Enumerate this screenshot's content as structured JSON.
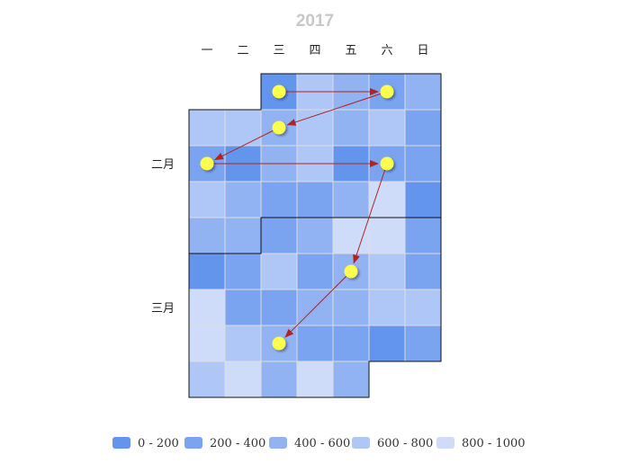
{
  "chart_data": {
    "type": "heatmap",
    "title": "2017",
    "day_labels": [
      "一",
      "二",
      "三",
      "四",
      "五",
      "六",
      "日"
    ],
    "month_labels": [
      "二月",
      "三月"
    ],
    "color_scale": [
      "#6495ed",
      "#7aa4f0",
      "#91b3f2",
      "#aec7f6",
      "#cfdcf9"
    ],
    "legend": [
      {
        "label": "0 - 200",
        "range": [
          0,
          200
        ]
      },
      {
        "label": "200 - 400",
        "range": [
          200,
          400
        ]
      },
      {
        "label": "400 - 600",
        "range": [
          400,
          600
        ]
      },
      {
        "label": "600 - 800",
        "range": [
          600,
          800
        ]
      },
      {
        "label": "800 - 1000",
        "range": [
          800,
          1000
        ]
      }
    ],
    "cells": [
      {
        "date": "2017-02-01",
        "value": 150
      },
      {
        "date": "2017-02-02",
        "value": 650
      },
      {
        "date": "2017-02-03",
        "value": 450
      },
      {
        "date": "2017-02-04",
        "value": 250
      },
      {
        "date": "2017-02-05",
        "value": 550
      },
      {
        "date": "2017-02-06",
        "value": 650
      },
      {
        "date": "2017-02-07",
        "value": 650
      },
      {
        "date": "2017-02-08",
        "value": 550
      },
      {
        "date": "2017-02-09",
        "value": 650
      },
      {
        "date": "2017-02-10",
        "value": 450
      },
      {
        "date": "2017-02-11",
        "value": 650
      },
      {
        "date": "2017-02-12",
        "value": 350
      },
      {
        "date": "2017-02-13",
        "value": 350
      },
      {
        "date": "2017-02-14",
        "value": 150
      },
      {
        "date": "2017-02-15",
        "value": 550
      },
      {
        "date": "2017-02-16",
        "value": 650
      },
      {
        "date": "2017-02-17",
        "value": 150
      },
      {
        "date": "2017-02-18",
        "value": 250
      },
      {
        "date": "2017-02-19",
        "value": 350
      },
      {
        "date": "2017-02-20",
        "value": 650
      },
      {
        "date": "2017-02-21",
        "value": 550
      },
      {
        "date": "2017-02-22",
        "value": 350
      },
      {
        "date": "2017-02-23",
        "value": 350
      },
      {
        "date": "2017-02-24",
        "value": 550
      },
      {
        "date": "2017-02-25",
        "value": 850
      },
      {
        "date": "2017-02-26",
        "value": 150
      },
      {
        "date": "2017-02-27",
        "value": 550
      },
      {
        "date": "2017-02-28",
        "value": 550
      },
      {
        "date": "2017-03-01",
        "value": 350
      },
      {
        "date": "2017-03-02",
        "value": 450
      },
      {
        "date": "2017-03-03",
        "value": 850
      },
      {
        "date": "2017-03-04",
        "value": 850
      },
      {
        "date": "2017-03-05",
        "value": 350
      },
      {
        "date": "2017-03-06",
        "value": 150
      },
      {
        "date": "2017-03-07",
        "value": 350
      },
      {
        "date": "2017-03-08",
        "value": 650
      },
      {
        "date": "2017-03-09",
        "value": 350
      },
      {
        "date": "2017-03-10",
        "value": 450
      },
      {
        "date": "2017-03-11",
        "value": 650
      },
      {
        "date": "2017-03-12",
        "value": 350
      },
      {
        "date": "2017-03-13",
        "value": 850
      },
      {
        "date": "2017-03-14",
        "value": 350
      },
      {
        "date": "2017-03-15",
        "value": 350
      },
      {
        "date": "2017-03-16",
        "value": 550
      },
      {
        "date": "2017-03-17",
        "value": 450
      },
      {
        "date": "2017-03-18",
        "value": 650
      },
      {
        "date": "2017-03-19",
        "value": 650
      },
      {
        "date": "2017-03-20",
        "value": 850
      },
      {
        "date": "2017-03-21",
        "value": 650
      },
      {
        "date": "2017-03-22",
        "value": 450
      },
      {
        "date": "2017-03-23",
        "value": 350
      },
      {
        "date": "2017-03-24",
        "value": 350
      },
      {
        "date": "2017-03-25",
        "value": 150
      },
      {
        "date": "2017-03-26",
        "value": 250
      },
      {
        "date": "2017-03-27",
        "value": 650
      },
      {
        "date": "2017-03-28",
        "value": 850
      },
      {
        "date": "2017-03-29",
        "value": 550
      },
      {
        "date": "2017-03-30",
        "value": 850
      },
      {
        "date": "2017-03-31",
        "value": 450
      }
    ],
    "markers": [
      "2017-02-01",
      "2017-02-04",
      "2017-02-08",
      "2017-02-13",
      "2017-02-18",
      "2017-03-10",
      "2017-03-22"
    ],
    "arrows": [
      [
        "2017-02-01",
        "2017-02-04"
      ],
      [
        "2017-02-04",
        "2017-02-08"
      ],
      [
        "2017-02-08",
        "2017-02-13"
      ],
      [
        "2017-02-13",
        "2017-02-18"
      ],
      [
        "2017-02-18",
        "2017-03-10"
      ],
      [
        "2017-03-10",
        "2017-03-22"
      ]
    ],
    "marker_color": "#ffff4d",
    "arrow_color": "#b22222"
  }
}
